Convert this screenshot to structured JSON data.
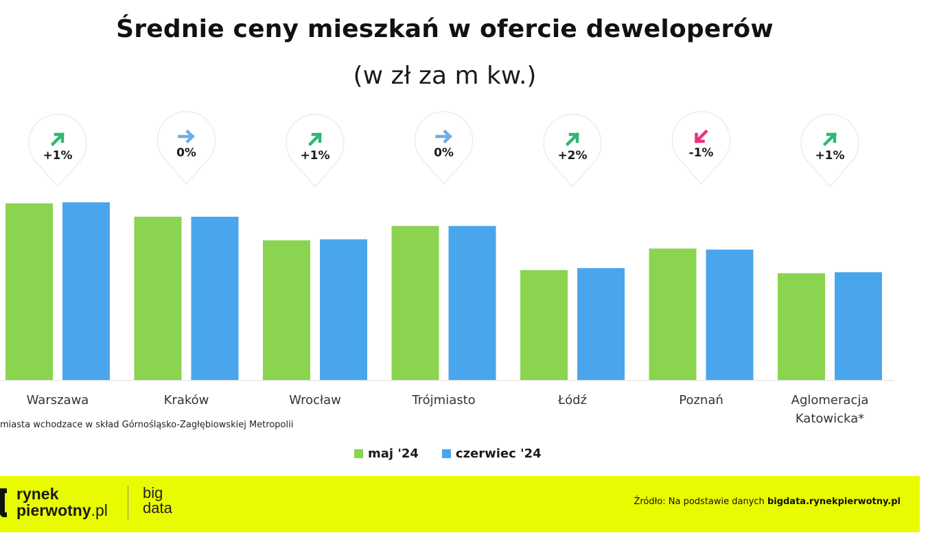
{
  "title": "Średnie ceny mieszkań w ofercie deweloperów",
  "subtitle": "(w zł za m kw.)",
  "footnote": "miasta wchodzace w skład Górnośląsko-Zagłębiowskiej Metropolii",
  "legend": [
    {
      "label": "maj '24",
      "color": "#8bd44f"
    },
    {
      "label": "czerwiec '24",
      "color": "#4aa6ec"
    }
  ],
  "footer": {
    "logo_line1": "rynek",
    "logo_line2_bold": "pierwotny",
    "logo_line2_suffix": ".pl",
    "logo_big_line1": "big",
    "logo_big_line2": "data",
    "source_prefix": "Źródło: Na podstawie danych ",
    "source_strong": "bigdata.rynekpierwotny.pl"
  },
  "colors": {
    "up": "#2eb873",
    "flat": "#6aaee6",
    "down": "#ee2e7a",
    "footer_bg": "#e8fb00"
  },
  "chart_data": {
    "type": "bar",
    "title": "Średnie ceny mieszkań w ofercie deweloperów",
    "subtitle": "(w zł za m kw.)",
    "categories": [
      "Warszawa",
      "Kraków",
      "Wrocław",
      "Trójmiasto",
      "Łódź",
      "Poznań",
      "Aglomeracja\nKatowicka*"
    ],
    "series": [
      {
        "name": "maj '24",
        "color": "#8bd44f",
        "values": [
          17200,
          15900,
          13600,
          15000,
          10700,
          12800,
          10400
        ]
      },
      {
        "name": "czerwiec '24",
        "color": "#4aa6ec",
        "values": [
          17300,
          15900,
          13700,
          15000,
          10900,
          12700,
          10500
        ]
      }
    ],
    "changes": [
      {
        "label": "+1%",
        "direction": "up"
      },
      {
        "label": "0%",
        "direction": "flat"
      },
      {
        "label": "+1%",
        "direction": "up"
      },
      {
        "label": "0%",
        "direction": "flat"
      },
      {
        "label": "+2%",
        "direction": "up"
      },
      {
        "label": "-1%",
        "direction": "down"
      },
      {
        "label": "+1%",
        "direction": "up"
      }
    ],
    "ylim": [
      0,
      17300
    ],
    "grid": false,
    "legend_position": "bottom"
  }
}
